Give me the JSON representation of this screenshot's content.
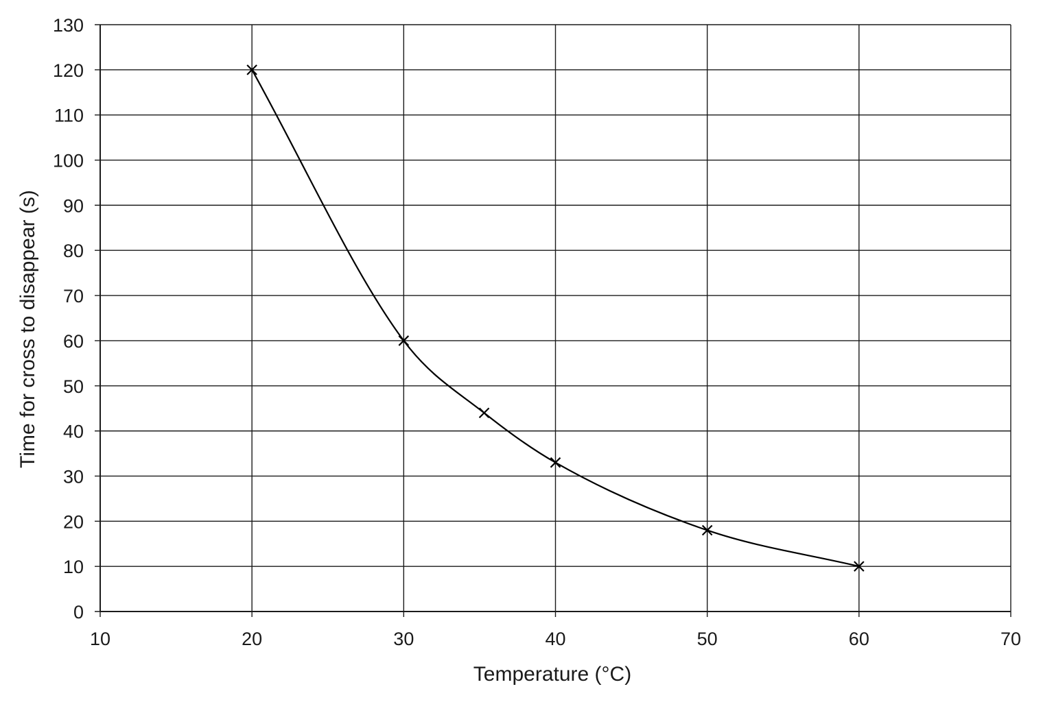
{
  "chart_data": {
    "type": "line",
    "title": "",
    "xlabel": "Temperature (°C)",
    "ylabel": "Time for cross to disappear (s)",
    "xlim": [
      10,
      70
    ],
    "ylim": [
      0,
      130
    ],
    "x_ticks": [
      10,
      20,
      30,
      40,
      50,
      60,
      70
    ],
    "y_ticks": [
      0,
      10,
      20,
      30,
      40,
      50,
      60,
      70,
      80,
      90,
      100,
      110,
      120,
      130
    ],
    "grid": true,
    "legend": "none",
    "marker": "cross",
    "line_style": "smooth curve",
    "series": [
      {
        "x": [
          20,
          30,
          35.3,
          40,
          50,
          60
        ],
        "y": [
          120,
          60,
          44,
          33,
          18,
          10
        ]
      }
    ]
  }
}
